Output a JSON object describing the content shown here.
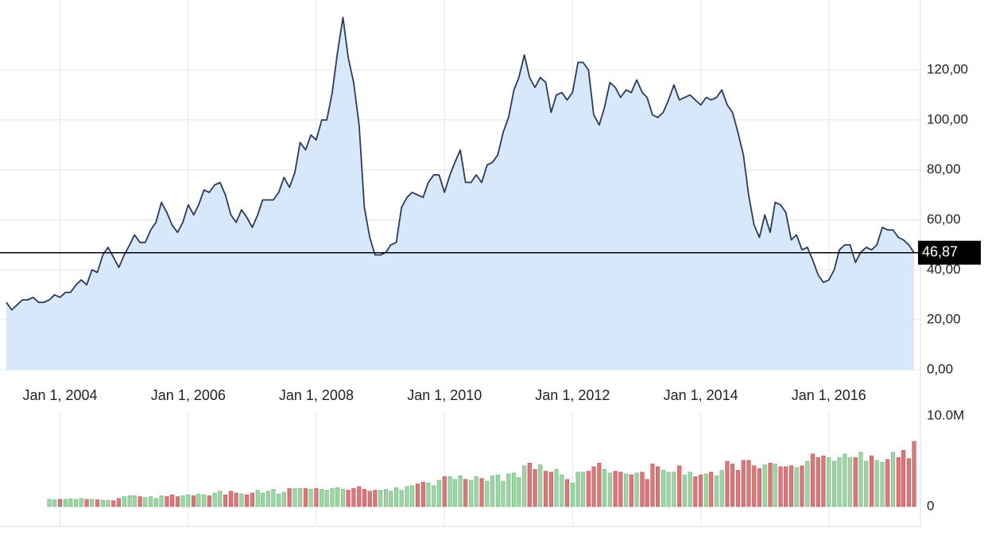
{
  "chart_data": [
    {
      "type": "line",
      "x": [
        "2003-03-01",
        "2003-04-01",
        "2003-05-01",
        "2003-06-01",
        "2003-07-01",
        "2003-08-01",
        "2003-09-01",
        "2003-10-01",
        "2003-11-01",
        "2003-12-01",
        "2004-01-01",
        "2004-02-01",
        "2004-03-01",
        "2004-04-01",
        "2004-05-01",
        "2004-06-01",
        "2004-07-01",
        "2004-08-01",
        "2004-09-01",
        "2004-10-01",
        "2004-11-01",
        "2004-12-01",
        "2005-01-01",
        "2005-02-01",
        "2005-03-01",
        "2005-04-01",
        "2005-05-01",
        "2005-06-01",
        "2005-07-01",
        "2005-08-01",
        "2005-09-01",
        "2005-10-01",
        "2005-11-01",
        "2005-12-01",
        "2006-01-01",
        "2006-02-01",
        "2006-03-01",
        "2006-04-01",
        "2006-05-01",
        "2006-06-01",
        "2006-07-01",
        "2006-08-01",
        "2006-09-01",
        "2006-10-01",
        "2006-11-01",
        "2006-12-01",
        "2007-01-01",
        "2007-02-01",
        "2007-03-01",
        "2007-04-01",
        "2007-05-01",
        "2007-06-01",
        "2007-07-01",
        "2007-08-01",
        "2007-09-01",
        "2007-10-01",
        "2007-11-01",
        "2007-12-01",
        "2008-01-01",
        "2008-02-01",
        "2008-03-01",
        "2008-04-01",
        "2008-05-01",
        "2008-06-01",
        "2008-07-01",
        "2008-08-01",
        "2008-09-01",
        "2008-10-01",
        "2008-11-01",
        "2008-12-01",
        "2009-01-01",
        "2009-02-01",
        "2009-03-01",
        "2009-04-01",
        "2009-05-01",
        "2009-06-01",
        "2009-07-01",
        "2009-08-01",
        "2009-09-01",
        "2009-10-01",
        "2009-11-01",
        "2009-12-01",
        "2010-01-01",
        "2010-02-01",
        "2010-03-01",
        "2010-04-01",
        "2010-05-01",
        "2010-06-01",
        "2010-07-01",
        "2010-08-01",
        "2010-09-01",
        "2010-10-01",
        "2010-11-01",
        "2010-12-01",
        "2011-01-01",
        "2011-02-01",
        "2011-03-01",
        "2011-04-01",
        "2011-05-01",
        "2011-06-01",
        "2011-07-01",
        "2011-08-01",
        "2011-09-01",
        "2011-10-01",
        "2011-11-01",
        "2011-12-01",
        "2012-01-01",
        "2012-02-01",
        "2012-03-01",
        "2012-04-01",
        "2012-05-01",
        "2012-06-01",
        "2012-07-01",
        "2012-08-01",
        "2012-09-01",
        "2012-10-01",
        "2012-11-01",
        "2012-12-01",
        "2013-01-01",
        "2013-02-01",
        "2013-03-01",
        "2013-04-01",
        "2013-05-01",
        "2013-06-01",
        "2013-07-01",
        "2013-08-01",
        "2013-09-01",
        "2013-10-01",
        "2013-11-01",
        "2013-12-01",
        "2014-01-01",
        "2014-02-01",
        "2014-03-01",
        "2014-04-01",
        "2014-05-01",
        "2014-06-01",
        "2014-07-01",
        "2014-08-01",
        "2014-09-01",
        "2014-10-01",
        "2014-11-01",
        "2014-12-01",
        "2015-01-01",
        "2015-02-01",
        "2015-03-01",
        "2015-04-01",
        "2015-05-01",
        "2015-06-01",
        "2015-07-01",
        "2015-08-01",
        "2015-09-01",
        "2015-10-01",
        "2015-11-01",
        "2015-12-01",
        "2016-01-01",
        "2016-02-01",
        "2016-03-01",
        "2016-04-01",
        "2016-05-01",
        "2016-06-01",
        "2016-07-01",
        "2016-08-01",
        "2016-09-01",
        "2016-10-01",
        "2016-11-01",
        "2016-12-01",
        "2017-01-01",
        "2017-02-01",
        "2017-03-01",
        "2017-04-01",
        "2017-05-01"
      ],
      "values": [
        27,
        24,
        26,
        28,
        28,
        29,
        27,
        27,
        28,
        30,
        29,
        31,
        31,
        34,
        36,
        34,
        40,
        39,
        46,
        49,
        45,
        41,
        46,
        50,
        54,
        51,
        51,
        56,
        59,
        67,
        63,
        58,
        55,
        59,
        66,
        62,
        66,
        72,
        71,
        74,
        75,
        70,
        62,
        59,
        64,
        61,
        57,
        62,
        68,
        68,
        68,
        71,
        77,
        73,
        79,
        91,
        88,
        94,
        92,
        100,
        100,
        111,
        127,
        141,
        125,
        115,
        98,
        65,
        53,
        46,
        46,
        47,
        50,
        51,
        65,
        69,
        71,
        70,
        69,
        75,
        78,
        78,
        71,
        78,
        83,
        88,
        75,
        75,
        78,
        75,
        82,
        83,
        86,
        95,
        101,
        112,
        117,
        126,
        117,
        113,
        117,
        115,
        103,
        110,
        111,
        108,
        111,
        123,
        123,
        120,
        102,
        98,
        105,
        115,
        113,
        109,
        112,
        111,
        116,
        111,
        109,
        102,
        101,
        103,
        108,
        114,
        108,
        109,
        110,
        108,
        106,
        109,
        108,
        109,
        112,
        106,
        103,
        95,
        86,
        70,
        58,
        53,
        62,
        55,
        67,
        66,
        63,
        52,
        54,
        48,
        49,
        44,
        38,
        35,
        36,
        40,
        48,
        50,
        50,
        43,
        47,
        49,
        48,
        50,
        57,
        56,
        56,
        53,
        52,
        50,
        46.87
      ],
      "color": "#2b3a5c",
      "area_color": "#d7e8fb",
      "current_value": 46.87,
      "current_label": "46,87",
      "current_color": "#000000",
      "xlim": [
        "2003-03-01",
        "2017-05-01"
      ],
      "xticks": [
        {
          "value": "2004-01-01",
          "label": "Jan 1, 2004"
        },
        {
          "value": "2006-01-01",
          "label": "Jan 1, 2006"
        },
        {
          "value": "2008-01-01",
          "label": "Jan 1, 2008"
        },
        {
          "value": "2010-01-01",
          "label": "Jan 1, 2010"
        },
        {
          "value": "2012-01-01",
          "label": "Jan 1, 2012"
        },
        {
          "value": "2014-01-01",
          "label": "Jan 1, 2014"
        },
        {
          "value": "2016-01-01",
          "label": "Jan 1, 2016"
        }
      ],
      "ylim": [
        0,
        148
      ],
      "yticks": [
        {
          "value": 0,
          "label": "0,00"
        },
        {
          "value": 20,
          "label": "20,00"
        },
        {
          "value": 40,
          "label": "40,00"
        },
        {
          "value": 60,
          "label": "60,00"
        },
        {
          "value": 80,
          "label": "80,00"
        },
        {
          "value": 100,
          "label": "100,00"
        },
        {
          "value": 120,
          "label": "120,00"
        }
      ],
      "grid": true
    },
    {
      "type": "bar",
      "x": [
        "2003-11-01",
        "2003-12-01",
        "2004-01-01",
        "2004-02-01",
        "2004-03-01",
        "2004-04-01",
        "2004-05-01",
        "2004-06-01",
        "2004-07-01",
        "2004-08-01",
        "2004-09-01",
        "2004-10-01",
        "2004-11-01",
        "2004-12-01",
        "2005-01-01",
        "2005-02-01",
        "2005-03-01",
        "2005-04-01",
        "2005-05-01",
        "2005-06-01",
        "2005-07-01",
        "2005-08-01",
        "2005-09-01",
        "2005-10-01",
        "2005-11-01",
        "2005-12-01",
        "2006-01-01",
        "2006-02-01",
        "2006-03-01",
        "2006-04-01",
        "2006-05-01",
        "2006-06-01",
        "2006-07-01",
        "2006-08-01",
        "2006-09-01",
        "2006-10-01",
        "2006-11-01",
        "2006-12-01",
        "2007-01-01",
        "2007-02-01",
        "2007-03-01",
        "2007-04-01",
        "2007-05-01",
        "2007-06-01",
        "2007-07-01",
        "2007-08-01",
        "2007-09-01",
        "2007-10-01",
        "2007-11-01",
        "2007-12-01",
        "2008-01-01",
        "2008-02-01",
        "2008-03-01",
        "2008-04-01",
        "2008-05-01",
        "2008-06-01",
        "2008-07-01",
        "2008-08-01",
        "2008-09-01",
        "2008-10-01",
        "2008-11-01",
        "2008-12-01",
        "2009-01-01",
        "2009-02-01",
        "2009-03-01",
        "2009-04-01",
        "2009-05-01",
        "2009-06-01",
        "2009-07-01",
        "2009-08-01",
        "2009-09-01",
        "2009-10-01",
        "2009-11-01",
        "2009-12-01",
        "2010-01-01",
        "2010-02-01",
        "2010-03-01",
        "2010-04-01",
        "2010-05-01",
        "2010-06-01",
        "2010-07-01",
        "2010-08-01",
        "2010-09-01",
        "2010-10-01",
        "2010-11-01",
        "2010-12-01",
        "2011-01-01",
        "2011-02-01",
        "2011-03-01",
        "2011-04-01",
        "2011-05-01",
        "2011-06-01",
        "2011-07-01",
        "2011-08-01",
        "2011-09-01",
        "2011-10-01",
        "2011-11-01",
        "2011-12-01",
        "2012-01-01",
        "2012-02-01",
        "2012-03-01",
        "2012-04-01",
        "2012-05-01",
        "2012-06-01",
        "2012-07-01",
        "2012-08-01",
        "2012-09-01",
        "2012-10-01",
        "2012-11-01",
        "2012-12-01",
        "2013-01-01",
        "2013-02-01",
        "2013-03-01",
        "2013-04-01",
        "2013-05-01",
        "2013-06-01",
        "2013-07-01",
        "2013-08-01",
        "2013-09-01",
        "2013-10-01",
        "2013-11-01",
        "2013-12-01",
        "2014-01-01",
        "2014-02-01",
        "2014-03-01",
        "2014-04-01",
        "2014-05-01",
        "2014-06-01",
        "2014-07-01",
        "2014-08-01",
        "2014-09-01",
        "2014-10-01",
        "2014-11-01",
        "2014-12-01",
        "2015-01-01",
        "2015-02-01",
        "2015-03-01",
        "2015-04-01",
        "2015-05-01",
        "2015-06-01",
        "2015-07-01",
        "2015-08-01",
        "2015-09-01",
        "2015-10-01",
        "2015-11-01",
        "2015-12-01",
        "2016-01-01",
        "2016-02-01",
        "2016-03-01",
        "2016-04-01",
        "2016-05-01",
        "2016-06-01",
        "2016-07-01",
        "2016-08-01",
        "2016-09-01",
        "2016-10-01",
        "2016-11-01",
        "2016-12-01",
        "2017-01-01",
        "2017-02-01",
        "2017-03-01",
        "2017-04-01",
        "2017-05-01"
      ],
      "values": [
        800000,
        750000,
        800000,
        800000,
        850000,
        800000,
        900000,
        800000,
        800000,
        750000,
        700000,
        700000,
        650000,
        900000,
        1100000,
        1200000,
        1200000,
        1100000,
        1000000,
        1100000,
        900000,
        1200000,
        1100000,
        1300000,
        1100000,
        1200000,
        1300000,
        1200000,
        1400000,
        1300000,
        1200000,
        1500000,
        1700000,
        1300000,
        1700000,
        1500000,
        1400000,
        1300000,
        1500000,
        1800000,
        1500000,
        1700000,
        1900000,
        1400000,
        1600000,
        2000000,
        2000000,
        2000000,
        2000000,
        1900000,
        2000000,
        1900000,
        1800000,
        2000000,
        2100000,
        1900000,
        1800000,
        2000000,
        2200000,
        1900000,
        1700000,
        1800000,
        1800000,
        1900000,
        1700000,
        2100000,
        1800000,
        2200000,
        2300000,
        2500000,
        2700000,
        2600000,
        2300000,
        2900000,
        3300000,
        3300000,
        3000000,
        3400000,
        3000000,
        2900000,
        3300000,
        3100000,
        2800000,
        3400000,
        3500000,
        2800000,
        3600000,
        3700000,
        3200000,
        4500000,
        4800000,
        4100000,
        4600000,
        3900000,
        3800000,
        4100000,
        3500000,
        3000000,
        2600000,
        3800000,
        3800000,
        3900000,
        4400000,
        4800000,
        4100000,
        3700000,
        3900000,
        3800000,
        3600000,
        3500000,
        3700000,
        3800000,
        3000000,
        4700000,
        4400000,
        4000000,
        3800000,
        3800000,
        4500000,
        3500000,
        3800000,
        3300000,
        3500000,
        3600000,
        3800000,
        3400000,
        4000000,
        5000000,
        4700000,
        4000000,
        5100000,
        5100000,
        4500000,
        4200000,
        4600000,
        4800000,
        4700000,
        4400000,
        4400000,
        4500000,
        4300000,
        4500000,
        5000000,
        5800000,
        5400000,
        5600000,
        5400000,
        5000000,
        5400000,
        5800000,
        5400000,
        5400000,
        6000000,
        5000000,
        5600000,
        5100000,
        4900000,
        5200000,
        6000000,
        5400000,
        6200000,
        5300000,
        7200000
      ],
      "up_color": "#9fd4a6",
      "down_color": "#d9787a",
      "ylim": [
        0,
        10000000
      ],
      "yticks": [
        {
          "value": 0,
          "label": "0"
        },
        {
          "value": 10000000,
          "label": "10.0M"
        }
      ]
    }
  ]
}
